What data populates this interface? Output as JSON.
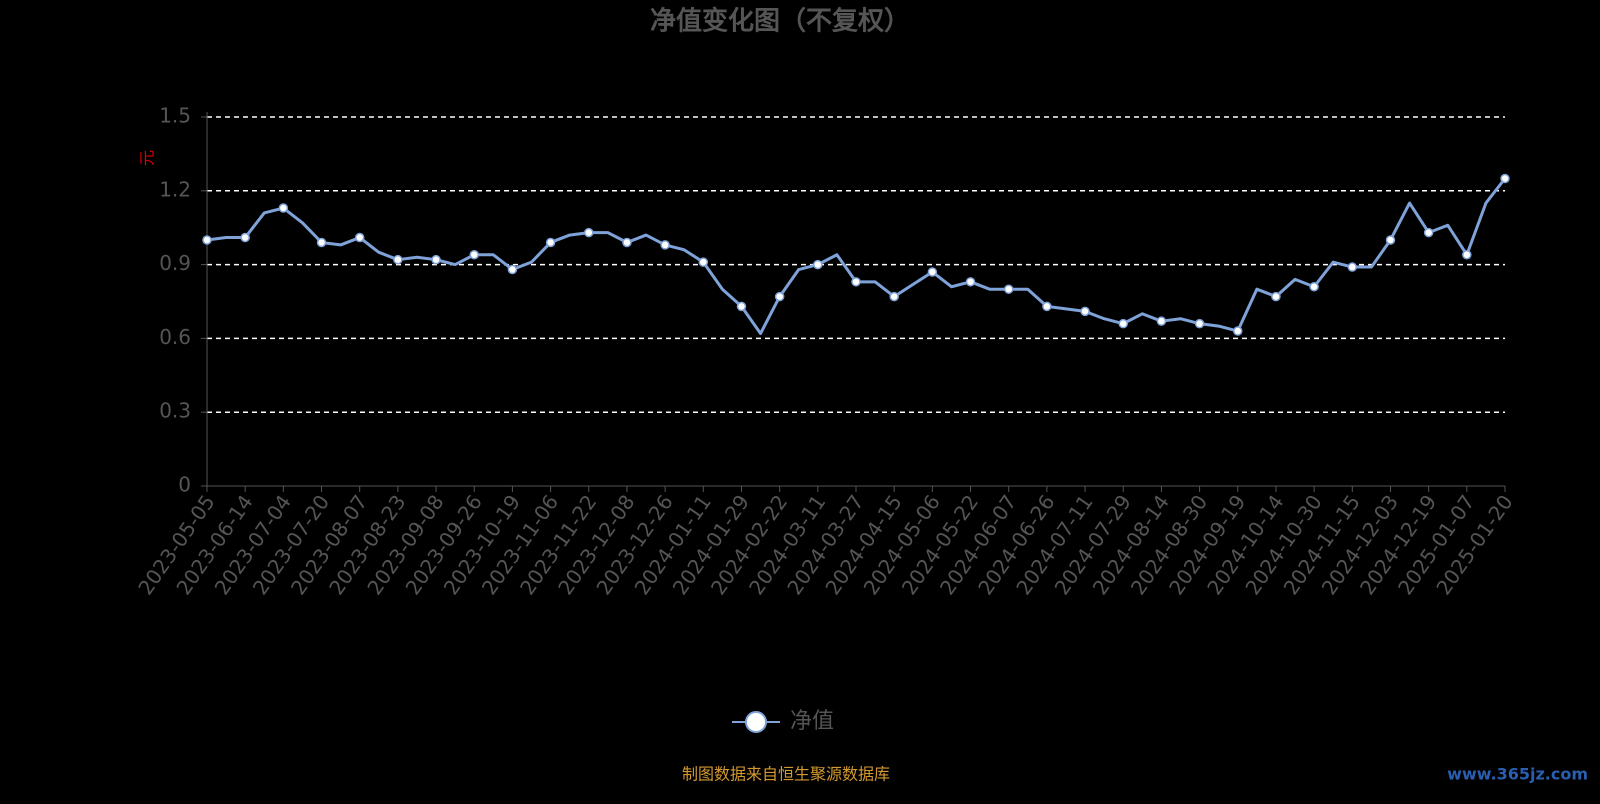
{
  "chart_data": {
    "type": "line",
    "title": "净值变化图（不复权）",
    "y_label": "元",
    "source": "制图数据来自恒生聚源数据库",
    "watermark": "www.365jz.com",
    "categories": [
      "2023-05-05",
      null,
      "2023-06-14",
      null,
      "2023-07-04",
      null,
      "2023-07-20",
      null,
      "2023-08-07",
      null,
      "2023-08-23",
      null,
      "2023-09-08",
      null,
      "2023-09-26",
      null,
      "2023-10-19",
      null,
      "2023-11-06",
      null,
      "2023-11-22",
      null,
      "2023-12-08",
      null,
      "2023-12-26",
      null,
      "2024-01-11",
      null,
      "2024-01-29",
      null,
      "2024-02-22",
      null,
      "2024-03-11",
      null,
      "2024-03-27",
      null,
      "2024-04-15",
      null,
      "2024-05-06",
      null,
      "2024-05-22",
      null,
      "2024-06-07",
      null,
      "2024-06-26",
      null,
      "2024-07-11",
      null,
      "2024-07-29",
      null,
      "2024-08-14",
      null,
      "2024-08-30",
      null,
      "2024-09-19",
      null,
      "2024-10-14",
      null,
      "2024-10-30",
      null,
      "2024-11-15",
      null,
      "2024-12-03",
      null,
      "2024-12-19",
      null,
      "2025-01-07",
      null,
      "2025-01-20"
    ],
    "series": [
      {
        "name": "净值",
        "color": "#7fa3d9",
        "values": [
          1.0,
          1.01,
          1.01,
          1.11,
          1.13,
          1.07,
          0.99,
          0.98,
          1.01,
          0.95,
          0.92,
          0.93,
          0.92,
          0.9,
          0.94,
          0.94,
          0.88,
          0.91,
          0.99,
          1.02,
          1.03,
          1.03,
          0.99,
          1.02,
          0.98,
          0.96,
          0.91,
          0.8,
          0.73,
          0.62,
          0.77,
          0.88,
          0.9,
          0.94,
          0.83,
          0.83,
          0.77,
          0.82,
          0.87,
          0.81,
          0.83,
          0.8,
          0.8,
          0.8,
          0.73,
          0.72,
          0.71,
          0.68,
          0.66,
          0.7,
          0.67,
          0.68,
          0.66,
          0.65,
          0.63,
          0.8,
          0.77,
          0.84,
          0.81,
          0.91,
          0.89,
          0.89,
          1.0,
          1.15,
          1.03,
          1.06,
          0.94,
          1.15,
          1.25
        ]
      }
    ],
    "ylim": [
      0,
      1.5
    ],
    "yticks": [
      0,
      0.3,
      0.6,
      0.9,
      1.2,
      1.5
    ],
    "grid": true
  }
}
